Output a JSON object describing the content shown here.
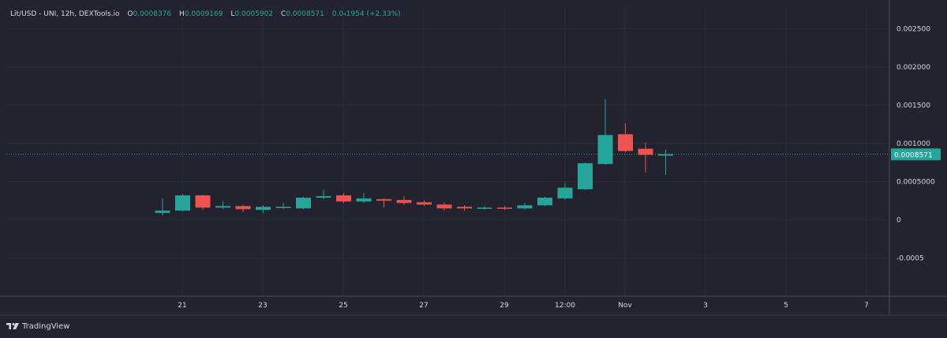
{
  "legend": {
    "symbol": "Lit/USD - UNI, 12h, DEXTools.io",
    "o_label": "O",
    "o_value": "0.0008376",
    "h_label": "H",
    "h_value": "0.0009169",
    "l_label": "L",
    "l_value": "0.0005902",
    "c_label": "C",
    "c_value": "0.0008571",
    "change": "0.0₄1954 (+2.33%)"
  },
  "footer": {
    "brand": "TradingView",
    "logo_icon": "tradingview-logo-icon"
  },
  "colors": {
    "background": "#22232e",
    "grid": "#2b2c37",
    "up": "#26a69a",
    "down": "#ef5350",
    "text": "#d7d8de",
    "price_line": "#26a69a",
    "axis_border": "#4a4b55"
  },
  "chart_data": {
    "type": "candlestick",
    "title": "Lit/USD - UNI, 12h, DEXTools.io",
    "interval": "12h",
    "xlabel": "",
    "ylabel": "",
    "ylim": [
      -0.001,
      0.0026
    ],
    "x_tick_labels": [
      "21",
      "23",
      "25",
      "27",
      "29",
      "12:00",
      "Nov",
      "3",
      "5",
      "7"
    ],
    "y_tick_labels": [
      "0.002500",
      "0.002000",
      "0.001500",
      "0.001000",
      "0.0005000",
      "0",
      "-0.0005"
    ],
    "y_tick_values": [
      0.0025,
      0.002,
      0.0015,
      0.001,
      0.0005,
      0,
      -0.0005
    ],
    "last_price_label": "0.0008571",
    "last_price": 0.0008571,
    "grid": true,
    "candles": [
      {
        "o": 9e-05,
        "h": 0.00028,
        "l": 6e-05,
        "c": 0.00012
      },
      {
        "o": 0.00012,
        "h": 0.00034,
        "l": 0.00011,
        "c": 0.00032
      },
      {
        "o": 0.00032,
        "h": 0.00033,
        "l": 0.00013,
        "c": 0.00016
      },
      {
        "o": 0.00016,
        "h": 0.00024,
        "l": 0.00014,
        "c": 0.00018
      },
      {
        "o": 0.00018,
        "h": 0.0002,
        "l": 0.0001,
        "c": 0.00014
      },
      {
        "o": 0.00013,
        "h": 0.00019,
        "l": 9e-05,
        "c": 0.00017
      },
      {
        "o": 0.00016,
        "h": 0.00022,
        "l": 0.00014,
        "c": 0.00017
      },
      {
        "o": 0.00015,
        "h": 0.0003,
        "l": 0.00014,
        "c": 0.00029
      },
      {
        "o": 0.00029,
        "h": 0.0004,
        "l": 0.00027,
        "c": 0.00031
      },
      {
        "o": 0.00032,
        "h": 0.00035,
        "l": 0.00022,
        "c": 0.00024
      },
      {
        "o": 0.00024,
        "h": 0.00035,
        "l": 0.00022,
        "c": 0.00028
      },
      {
        "o": 0.00027,
        "h": 0.00028,
        "l": 0.00016,
        "c": 0.00025
      },
      {
        "o": 0.00026,
        "h": 0.00031,
        "l": 0.0002,
        "c": 0.00022
      },
      {
        "o": 0.00023,
        "h": 0.00025,
        "l": 0.00018,
        "c": 0.0002
      },
      {
        "o": 0.0002,
        "h": 0.00023,
        "l": 0.00012,
        "c": 0.00015
      },
      {
        "o": 0.00017,
        "h": 0.00019,
        "l": 0.00012,
        "c": 0.00015
      },
      {
        "o": 0.00015,
        "h": 0.00018,
        "l": 0.00013,
        "c": 0.00016
      },
      {
        "o": 0.00016,
        "h": 0.00018,
        "l": 0.00013,
        "c": 0.00015
      },
      {
        "o": 0.00015,
        "h": 0.00022,
        "l": 0.00013,
        "c": 0.00019
      },
      {
        "o": 0.00019,
        "h": 0.0003,
        "l": 0.00018,
        "c": 0.00029
      },
      {
        "o": 0.00028,
        "h": 0.00048,
        "l": 0.00026,
        "c": 0.00042
      },
      {
        "o": 0.0004,
        "h": 0.00075,
        "l": 0.00039,
        "c": 0.00074
      },
      {
        "o": 0.00073,
        "h": 0.00158,
        "l": 0.00072,
        "c": 0.00111
      },
      {
        "o": 0.00112,
        "h": 0.00126,
        "l": 0.00088,
        "c": 0.0009
      },
      {
        "o": 0.00093,
        "h": 0.00101,
        "l": 0.00062,
        "c": 0.00085
      },
      {
        "o": 0.00084,
        "h": 0.00092,
        "l": 0.00059,
        "c": 0.00086
      }
    ]
  }
}
